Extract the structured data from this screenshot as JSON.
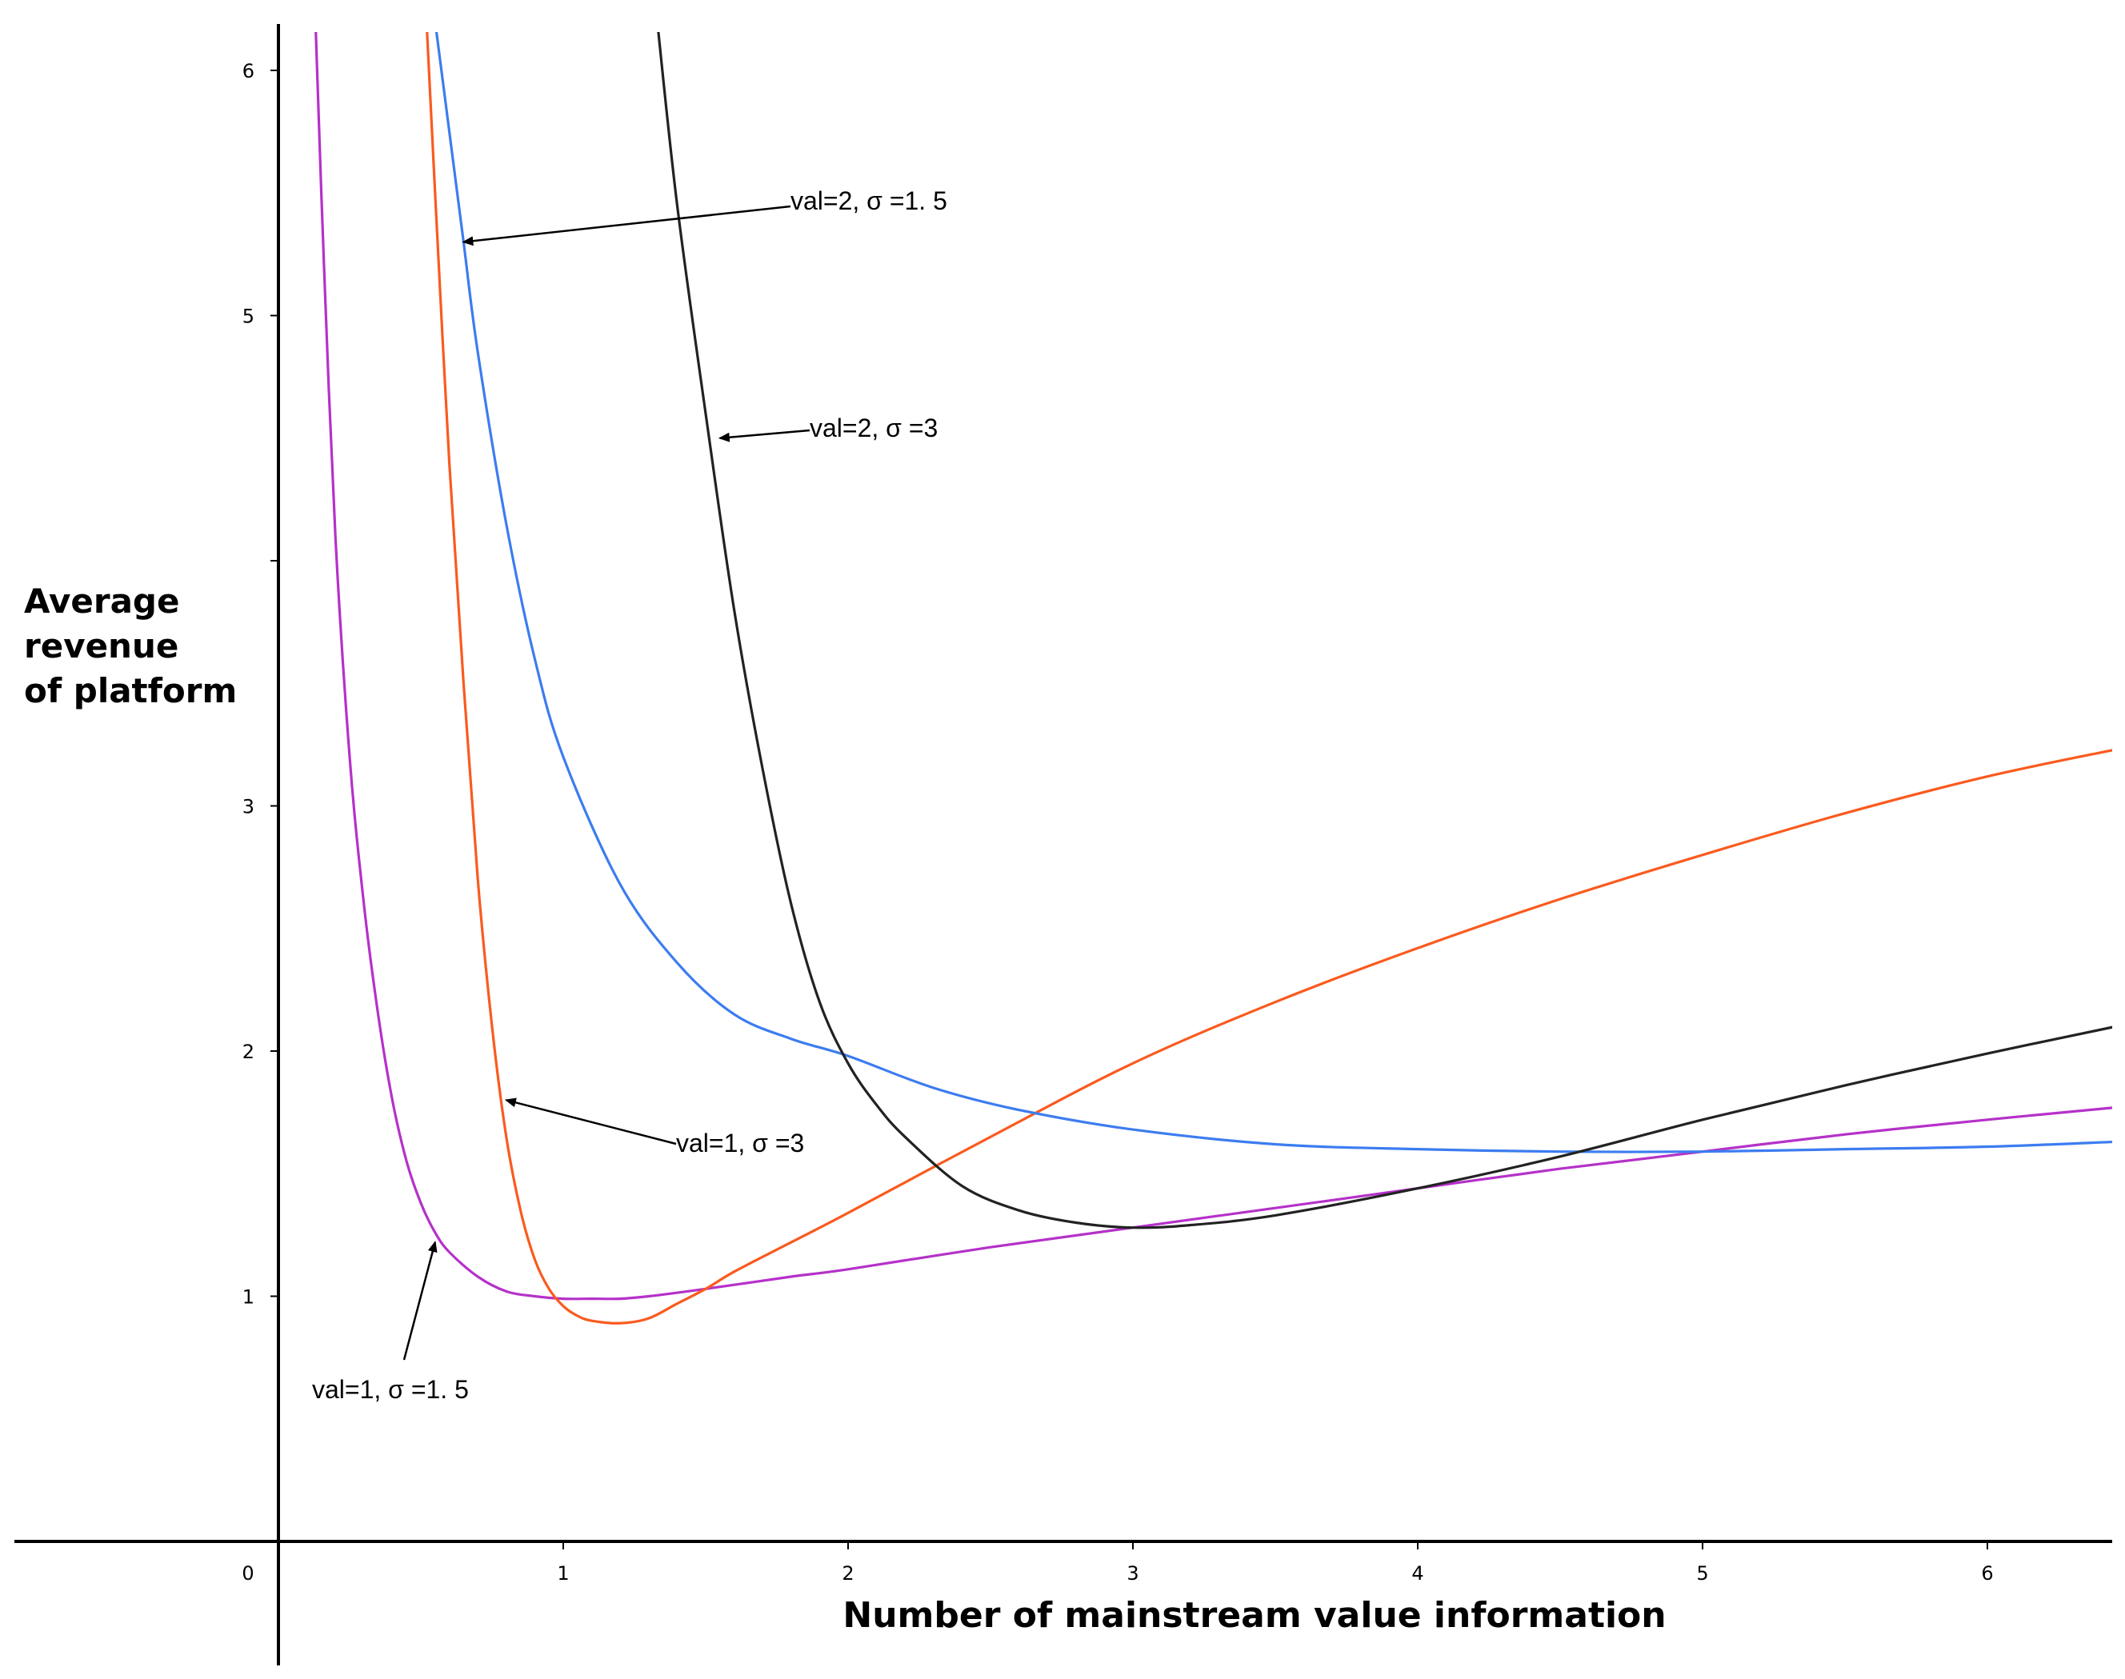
{
  "chart_data": {
    "type": "line",
    "title": "",
    "xlabel": "Number of mainstream value information",
    "ylabel_lines": [
      "Average",
      "revenue",
      "of platform"
    ],
    "xlim": [
      -0.95,
      6.45
    ],
    "ylim": [
      -0.5,
      6.2
    ],
    "origin_label": "0",
    "x_ticks": [
      1,
      2,
      3,
      4,
      5,
      6
    ],
    "x_tick_labels": [
      "1",
      "2",
      "3",
      "4",
      "5",
      "6"
    ],
    "y_ticks": [
      1,
      2,
      3,
      4,
      5,
      6
    ],
    "y_tick_labels": [
      "1",
      "2",
      "3",
      "",
      "5",
      "6"
    ],
    "grid": false,
    "series": [
      {
        "name": "val=1, σ=1.5",
        "label": "val=1,  σ =1. 5",
        "color": "#b531c9",
        "x": [
          0.13,
          0.16,
          0.2,
          0.25,
          0.3,
          0.35,
          0.4,
          0.45,
          0.5,
          0.55,
          0.6,
          0.7,
          0.8,
          0.9,
          1.0,
          1.1,
          1.2,
          1.3,
          1.5,
          1.8,
          2.0,
          2.5,
          3.0,
          3.5,
          4.0,
          4.5,
          5.0,
          5.5,
          6.0,
          6.45
        ],
        "y": [
          6.2,
          5.2,
          4.1,
          3.2,
          2.6,
          2.15,
          1.8,
          1.55,
          1.38,
          1.26,
          1.18,
          1.08,
          1.02,
          1.0,
          0.99,
          0.99,
          0.99,
          1.0,
          1.03,
          1.08,
          1.11,
          1.2,
          1.28,
          1.36,
          1.44,
          1.52,
          1.59,
          1.66,
          1.72,
          1.77
        ]
      },
      {
        "name": "val=1, σ=3",
        "label": "val=1,  σ =3",
        "color": "#fa5a1e",
        "x": [
          0.52,
          0.55,
          0.6,
          0.65,
          0.7,
          0.75,
          0.8,
          0.85,
          0.9,
          0.95,
          1.0,
          1.05,
          1.1,
          1.2,
          1.3,
          1.4,
          1.5,
          1.6,
          1.8,
          2.0,
          2.5,
          3.0,
          3.5,
          4.0,
          4.5,
          5.0,
          5.5,
          6.0,
          6.45
        ],
        "y": [
          6.2,
          5.5,
          4.4,
          3.5,
          2.7,
          2.1,
          1.65,
          1.35,
          1.15,
          1.03,
          0.96,
          0.92,
          0.9,
          0.89,
          0.91,
          0.97,
          1.03,
          1.1,
          1.22,
          1.34,
          1.65,
          1.95,
          2.2,
          2.42,
          2.62,
          2.8,
          2.97,
          3.12,
          3.23
        ]
      },
      {
        "name": "val=2, σ=1.5",
        "label": "val=2,  σ =1. 5",
        "color": "#3c7cf0",
        "x": [
          0.55,
          0.6,
          0.65,
          0.7,
          0.8,
          0.9,
          1.0,
          1.2,
          1.4,
          1.6,
          1.8,
          2.0,
          2.3,
          2.6,
          3.0,
          3.5,
          4.0,
          4.5,
          5.0,
          5.5,
          6.0,
          6.45
        ],
        "y": [
          6.2,
          5.75,
          5.3,
          4.85,
          4.15,
          3.6,
          3.2,
          2.68,
          2.36,
          2.15,
          2.05,
          1.98,
          1.85,
          1.76,
          1.68,
          1.62,
          1.6,
          1.59,
          1.59,
          1.6,
          1.61,
          1.63
        ]
      },
      {
        "name": "val=2, σ=3",
        "label": "val=2,  σ =3",
        "color": "#222222",
        "x": [
          1.33,
          1.4,
          1.5,
          1.6,
          1.7,
          1.8,
          1.9,
          2.0,
          2.1,
          2.2,
          2.4,
          2.6,
          2.8,
          3.0,
          3.2,
          3.5,
          4.0,
          4.5,
          5.0,
          5.5,
          6.0,
          6.45
        ],
        "y": [
          6.2,
          5.45,
          4.6,
          3.8,
          3.15,
          2.6,
          2.2,
          1.95,
          1.78,
          1.65,
          1.45,
          1.35,
          1.3,
          1.28,
          1.29,
          1.33,
          1.44,
          1.57,
          1.72,
          1.86,
          1.99,
          2.1
        ]
      }
    ]
  }
}
